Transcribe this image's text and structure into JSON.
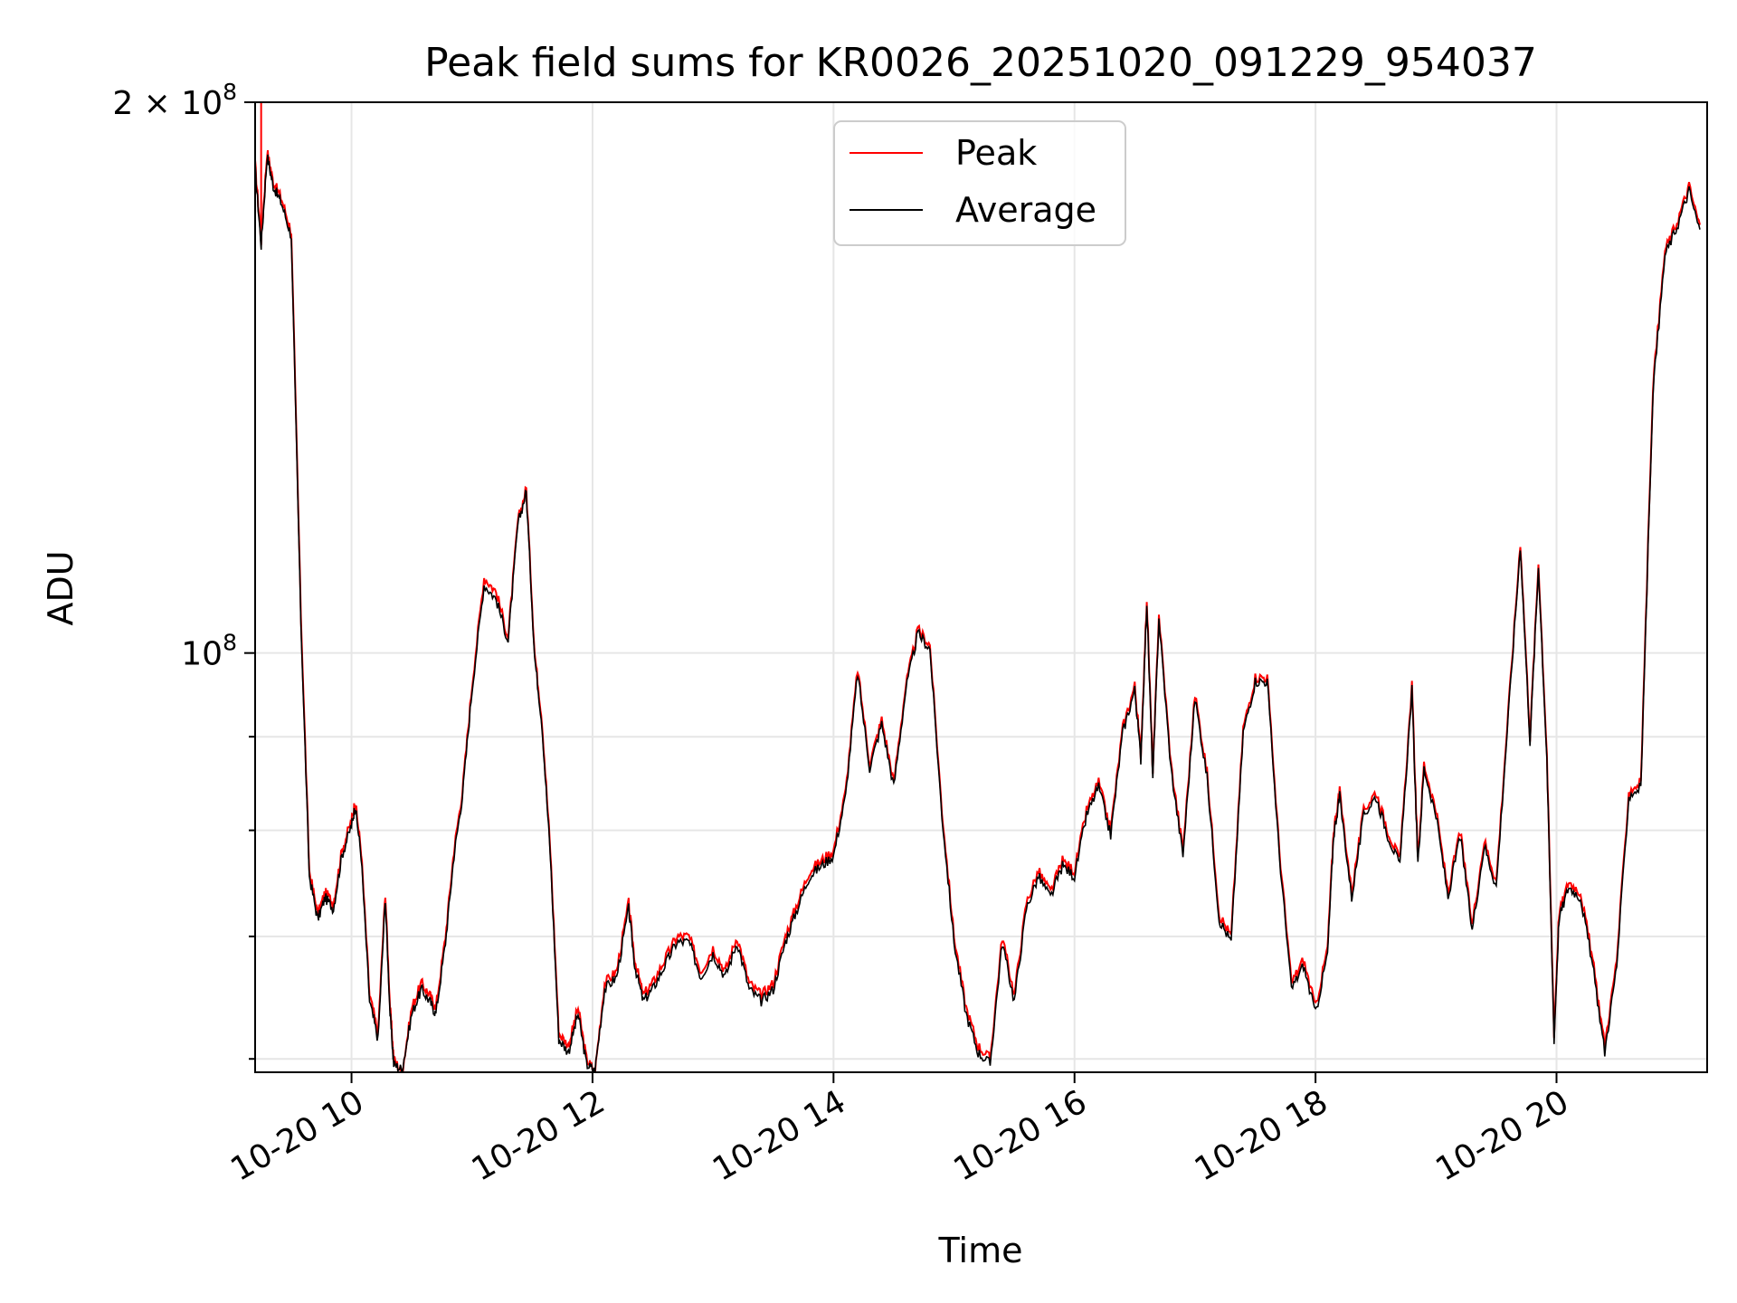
{
  "chart_data": {
    "type": "line",
    "title": "Peak field sums for KR0026_20251020_091229_954037",
    "xlabel": "Time",
    "ylabel": "ADU",
    "yscale": "log",
    "ylim": [
      59000000,
      200000000
    ],
    "xlim": [
      9.2,
      21.25
    ],
    "grid": true,
    "legend_position": "upper-center",
    "x_ticks": [
      {
        "value": 10,
        "label": "10-20 10"
      },
      {
        "value": 12,
        "label": "10-20 12"
      },
      {
        "value": 14,
        "label": "10-20 14"
      },
      {
        "value": 16,
        "label": "10-20 16"
      },
      {
        "value": 18,
        "label": "10-20 18"
      },
      {
        "value": 20,
        "label": "10-20 20"
      }
    ],
    "y_major_ticks": [
      {
        "value": 100000000,
        "base": "10",
        "exp": "8",
        "prefix": ""
      },
      {
        "value": 200000000,
        "base": "10",
        "exp": "8",
        "prefix": "2 × "
      }
    ],
    "y_minor_ticks": [
      60000000,
      70000000,
      80000000,
      90000000
    ],
    "x_hours": [
      9.2,
      9.25,
      9.3,
      9.35,
      9.42,
      9.5,
      9.58,
      9.65,
      9.72,
      9.78,
      9.85,
      9.92,
      10.0,
      10.03,
      10.08,
      10.15,
      10.22,
      10.28,
      10.32,
      10.35,
      10.42,
      10.5,
      10.58,
      10.65,
      10.7,
      10.78,
      10.85,
      10.92,
      11.0,
      11.1,
      11.2,
      11.3,
      11.38,
      11.45,
      11.52,
      11.58,
      11.65,
      11.72,
      11.8,
      11.88,
      11.95,
      12.02,
      12.1,
      12.2,
      12.3,
      12.35,
      12.42,
      12.5,
      12.6,
      12.7,
      12.8,
      12.9,
      13.0,
      13.1,
      13.2,
      13.3,
      13.4,
      13.5,
      13.6,
      13.7,
      13.8,
      13.9,
      14.0,
      14.1,
      14.2,
      14.3,
      14.4,
      14.5,
      14.6,
      14.7,
      14.8,
      14.9,
      15.0,
      15.1,
      15.2,
      15.3,
      15.4,
      15.5,
      15.6,
      15.7,
      15.8,
      15.9,
      16.0,
      16.1,
      16.2,
      16.3,
      16.4,
      16.5,
      16.55,
      16.6,
      16.65,
      16.7,
      16.8,
      16.9,
      17.0,
      17.1,
      17.2,
      17.3,
      17.4,
      17.5,
      17.6,
      17.7,
      17.8,
      17.9,
      18.0,
      18.1,
      18.15,
      18.2,
      18.3,
      18.4,
      18.5,
      18.6,
      18.7,
      18.8,
      18.85,
      18.9,
      19.0,
      19.1,
      19.2,
      19.3,
      19.4,
      19.5,
      19.6,
      19.7,
      19.78,
      19.85,
      19.92,
      19.98,
      20.02,
      20.1,
      20.2,
      20.3,
      20.4,
      20.5,
      20.6,
      20.7,
      20.8,
      20.9,
      21.0,
      21.1,
      21.2,
      21.25
    ],
    "series": [
      {
        "name": "Peak",
        "color": "#ff0000",
        "spike": {
          "hour": 9.25,
          "value": 200000000
        },
        "values": [
          185000000,
          168000000,
          188000000,
          181000000,
          177000000,
          170000000,
          105000000,
          76000000,
          72000000,
          74000000,
          73000000,
          78000000,
          81000000,
          83000000,
          78000000,
          65000000,
          62000000,
          74000000,
          64000000,
          60000000,
          59000000,
          64000000,
          66000000,
          65000000,
          64000000,
          70000000,
          78000000,
          84000000,
          96000000,
          110000000,
          108000000,
          102000000,
          118000000,
          123000000,
          100000000,
          92000000,
          78000000,
          62000000,
          61000000,
          64000000,
          60000000,
          59000000,
          66000000,
          67000000,
          73000000,
          68000000,
          65000000,
          66000000,
          68000000,
          70000000,
          70000000,
          67000000,
          69000000,
          67000000,
          70000000,
          66000000,
          65000000,
          66000000,
          70000000,
          73000000,
          76000000,
          77000000,
          78000000,
          84000000,
          98000000,
          87000000,
          92000000,
          85000000,
          96000000,
          103000000,
          101000000,
          82000000,
          70000000,
          64000000,
          61000000,
          60000000,
          70000000,
          65000000,
          73000000,
          76000000,
          74000000,
          77000000,
          76000000,
          82000000,
          85000000,
          80000000,
          91000000,
          96000000,
          88000000,
          107000000,
          86000000,
          105000000,
          87000000,
          78000000,
          95000000,
          86000000,
          72000000,
          70000000,
          91000000,
          97000000,
          97000000,
          78000000,
          66000000,
          68000000,
          64000000,
          69000000,
          80000000,
          84000000,
          74000000,
          82000000,
          84000000,
          80000000,
          77000000,
          96000000,
          77000000,
          87000000,
          82000000,
          74000000,
          80000000,
          71000000,
          79000000,
          75000000,
          93000000,
          115000000,
          90000000,
          112000000,
          88000000,
          62000000,
          72000000,
          75000000,
          74000000,
          68000000,
          61000000,
          68000000,
          84000000,
          85000000,
          140000000,
          166000000,
          172000000,
          180000000,
          170000000
        ]
      },
      {
        "name": "Average",
        "color": "#000000",
        "values": [
          184000000,
          167000000,
          187000000,
          180000000,
          176000000,
          169000000,
          104000000,
          75500000,
          71500000,
          73500000,
          72500000,
          77500000,
          80500000,
          82500000,
          77500000,
          64500000,
          61500000,
          73500000,
          63500000,
          59600000,
          59200000,
          63500000,
          65500000,
          64500000,
          63500000,
          69500000,
          77500000,
          83500000,
          95500000,
          109000000,
          107000000,
          101500000,
          117500000,
          122500000,
          99500000,
          91500000,
          77500000,
          61500000,
          60500000,
          63500000,
          59600000,
          59100000,
          65500000,
          66500000,
          72500000,
          67500000,
          64500000,
          65500000,
          67500000,
          69500000,
          69500000,
          66500000,
          68500000,
          66500000,
          69500000,
          65500000,
          64500000,
          65500000,
          69500000,
          72500000,
          75500000,
          76500000,
          77500000,
          83500000,
          97500000,
          86500000,
          91500000,
          84500000,
          95500000,
          102500000,
          100500000,
          81500000,
          69500000,
          63500000,
          60500000,
          59600000,
          69500000,
          64500000,
          72500000,
          75500000,
          73500000,
          76500000,
          75500000,
          81500000,
          84500000,
          79500000,
          90500000,
          95500000,
          87500000,
          106500000,
          85500000,
          104500000,
          86500000,
          77500000,
          94500000,
          85500000,
          71500000,
          69500000,
          90500000,
          96500000,
          96500000,
          77500000,
          65500000,
          67500000,
          63500000,
          68500000,
          79500000,
          83500000,
          73500000,
          81500000,
          83500000,
          79500000,
          76500000,
          95500000,
          76500000,
          86500000,
          81500000,
          73500000,
          79500000,
          70500000,
          78500000,
          74500000,
          92500000,
          114500000,
          89500000,
          111500000,
          87500000,
          61500000,
          71500000,
          74500000,
          73500000,
          67500000,
          60500000,
          67500000,
          83500000,
          84500000,
          139000000,
          165000000,
          171000000,
          179000000,
          169000000
        ]
      }
    ]
  }
}
